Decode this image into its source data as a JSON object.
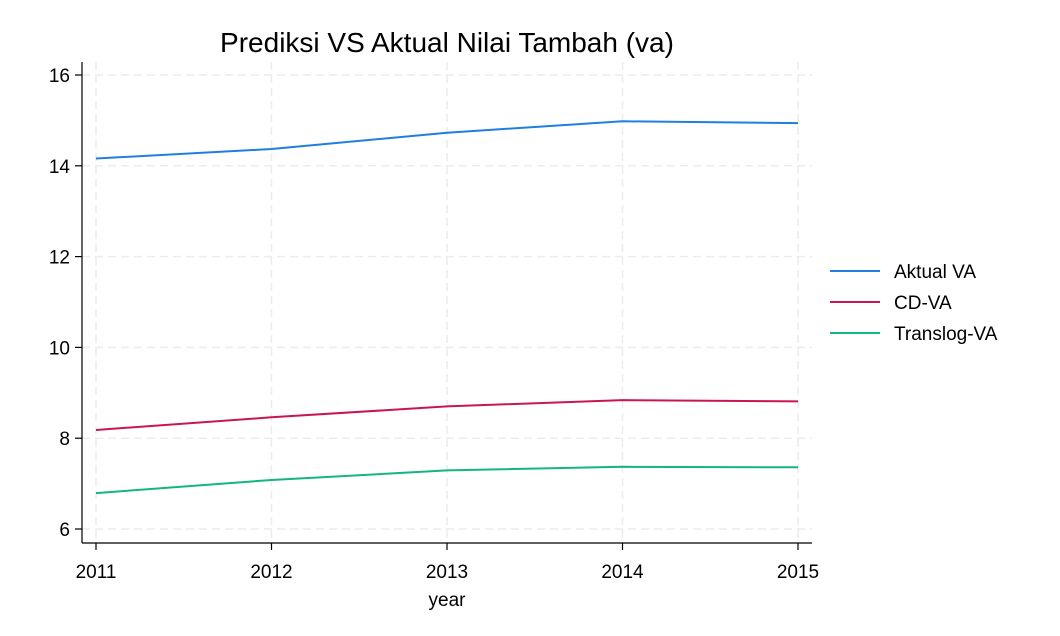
{
  "chart_data": {
    "type": "line",
    "title": "Prediksi VS Aktual Nilai Tambah (va)",
    "xlabel": "year",
    "ylabel": "",
    "x": [
      2011,
      2012,
      2013,
      2014,
      2015
    ],
    "xlim": [
      2011,
      2015
    ],
    "ylim": [
      6,
      16
    ],
    "yticks": [
      6,
      8,
      10,
      12,
      14,
      16
    ],
    "xticks": [
      2011,
      2012,
      2013,
      2014,
      2015
    ],
    "grid": true,
    "legend_position": "right",
    "series": [
      {
        "name": "Aktual VA",
        "color": "#1f7fe0",
        "values": [
          14.16,
          14.37,
          14.73,
          14.98,
          14.94
        ]
      },
      {
        "name": "CD-VA",
        "color": "#c8174e",
        "values": [
          8.18,
          8.46,
          8.7,
          8.84,
          8.81
        ]
      },
      {
        "name": "Translog-VA",
        "color": "#12b583",
        "values": [
          6.79,
          7.08,
          7.29,
          7.37,
          7.36
        ]
      }
    ]
  }
}
